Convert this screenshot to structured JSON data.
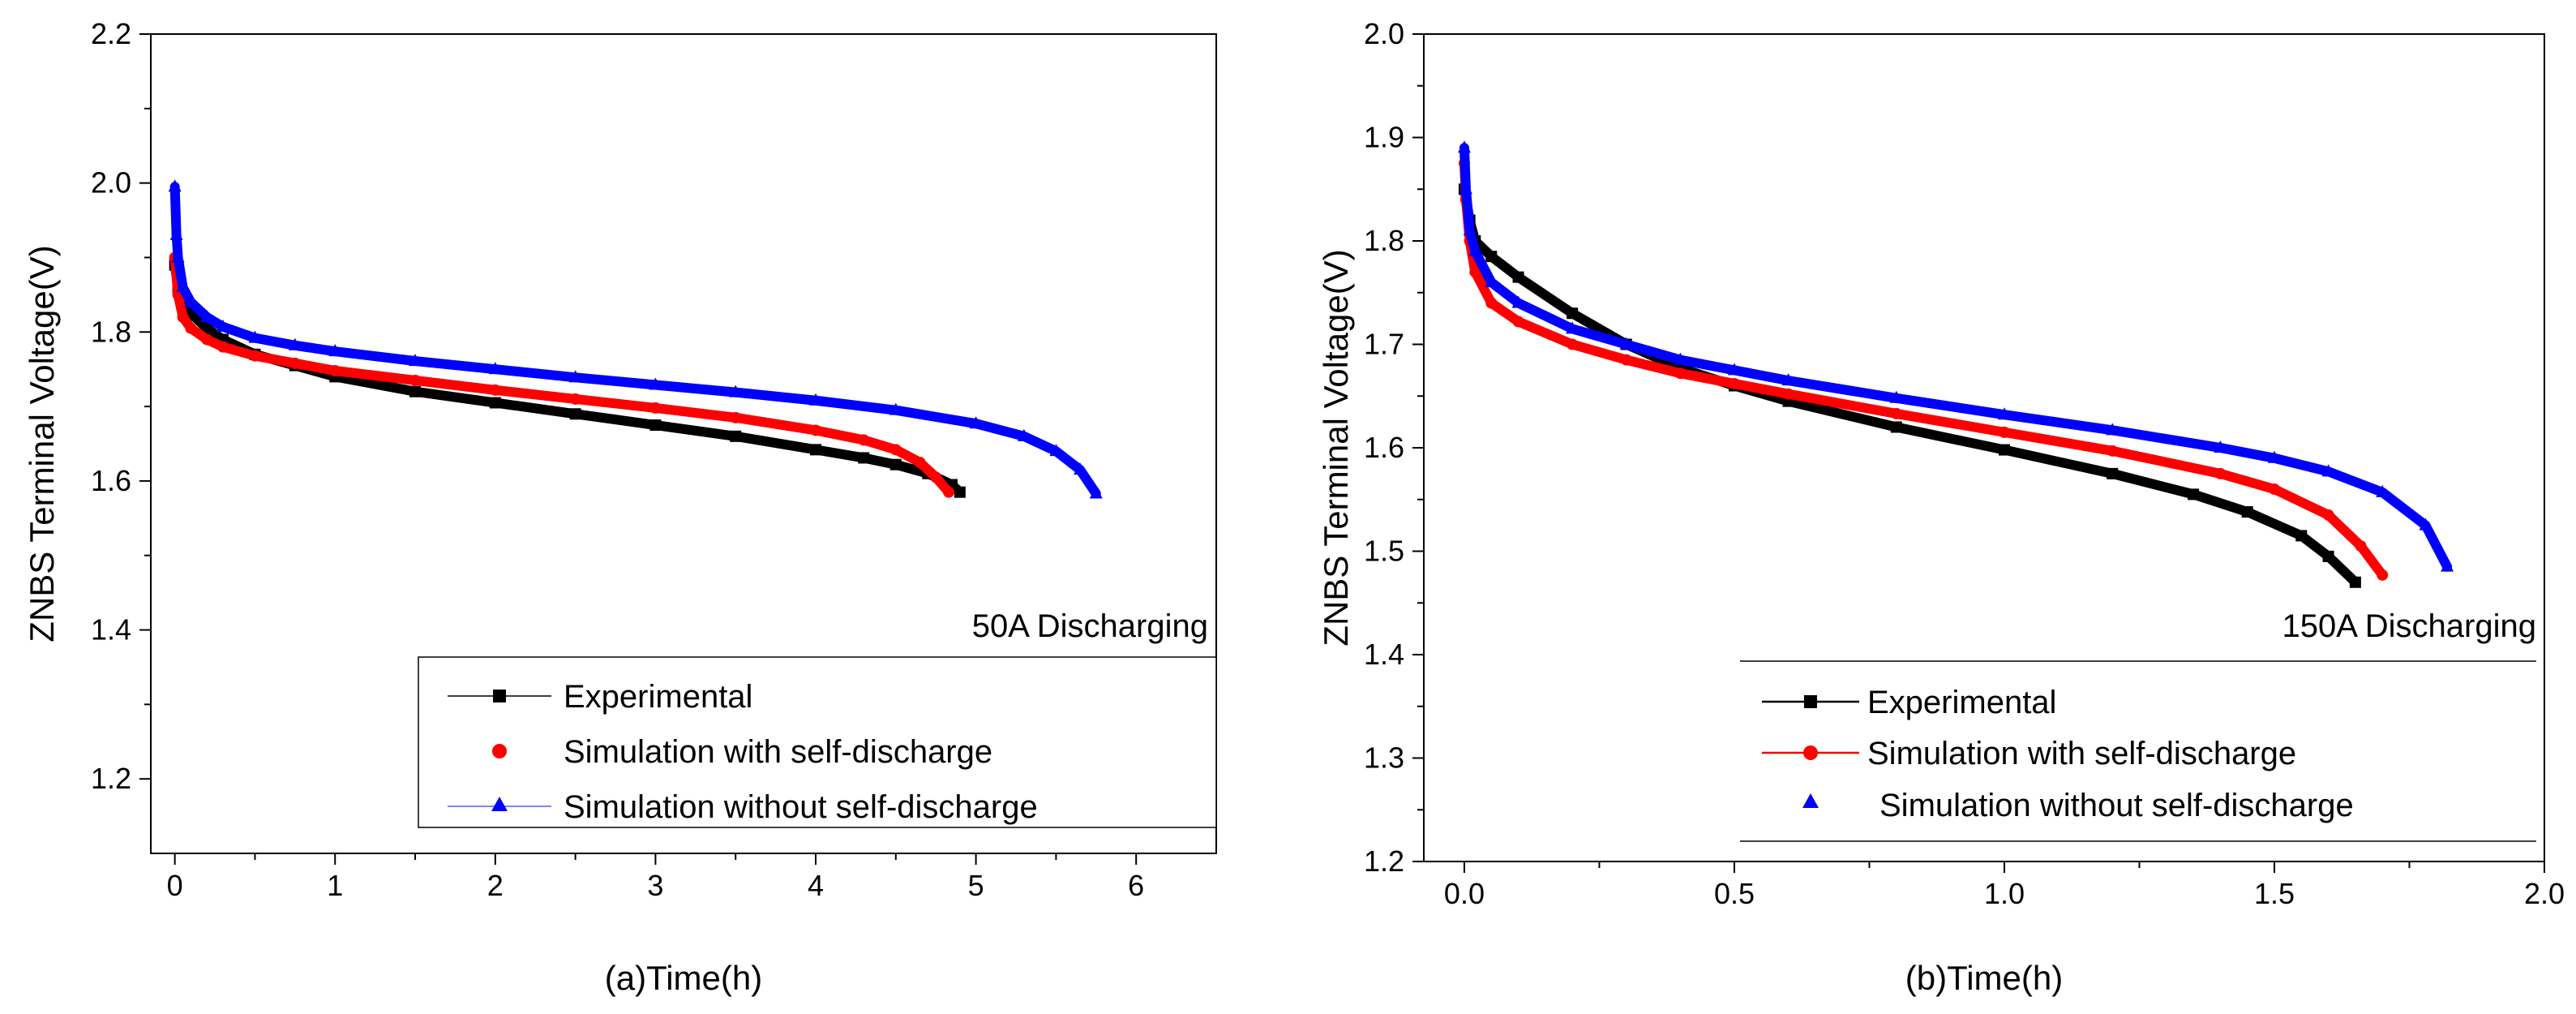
{
  "chart_data": [
    {
      "type": "line",
      "panel": "a",
      "xlabel": "(a)Time(h)",
      "ylabel": "ZNBS Terminal Voltage(V)",
      "xlim": [
        -0.15,
        6.5
      ],
      "ylim": [
        1.1,
        2.2
      ],
      "xticks": [
        0,
        1,
        2,
        3,
        4,
        5,
        6
      ],
      "xtick_labels": [
        "0",
        "1",
        "2",
        "3",
        "4",
        "5",
        "6"
      ],
      "yticks": [
        1.2,
        1.4,
        1.6,
        1.8,
        2.0,
        2.2
      ],
      "ytick_labels": [
        "1.2",
        "1.4",
        "1.6",
        "1.8",
        "2.0",
        "2.2"
      ],
      "annotation": "50A Discharging",
      "legend_position": "bottom-right",
      "series": [
        {
          "name": "Experimental",
          "color": "#000000",
          "marker": "square",
          "x": [
            0,
            0.02,
            0.05,
            0.1,
            0.2,
            0.3,
            0.5,
            0.75,
            1.0,
            1.5,
            2.0,
            2.5,
            3.0,
            3.5,
            4.0,
            4.3,
            4.5,
            4.7,
            4.85,
            4.9
          ],
          "y": [
            1.89,
            1.86,
            1.84,
            1.825,
            1.805,
            1.79,
            1.77,
            1.755,
            1.74,
            1.72,
            1.705,
            1.69,
            1.675,
            1.66,
            1.642,
            1.631,
            1.622,
            1.61,
            1.595,
            1.585
          ]
        },
        {
          "name": "Simulation with self-discharge",
          "color": "#ff0000",
          "marker": "circle",
          "x": [
            0,
            0.02,
            0.05,
            0.1,
            0.2,
            0.3,
            0.5,
            0.75,
            1.0,
            1.5,
            2.0,
            2.5,
            3.0,
            3.5,
            4.0,
            4.3,
            4.5,
            4.65,
            4.75,
            4.83
          ],
          "y": [
            1.9,
            1.85,
            1.82,
            1.805,
            1.79,
            1.78,
            1.768,
            1.758,
            1.748,
            1.735,
            1.722,
            1.71,
            1.698,
            1.685,
            1.668,
            1.655,
            1.642,
            1.625,
            1.605,
            1.585
          ]
        },
        {
          "name": "Simulation without self-discharge",
          "color": "#0000ff",
          "marker": "triangle",
          "x": [
            0,
            0.01,
            0.02,
            0.05,
            0.1,
            0.2,
            0.3,
            0.5,
            0.75,
            1.0,
            1.5,
            2.0,
            2.5,
            3.0,
            3.5,
            4.0,
            4.5,
            5.0,
            5.3,
            5.5,
            5.65,
            5.75
          ],
          "y": [
            1.995,
            1.93,
            1.9,
            1.86,
            1.84,
            1.82,
            1.807,
            1.792,
            1.782,
            1.774,
            1.761,
            1.75,
            1.739,
            1.729,
            1.719,
            1.708,
            1.695,
            1.677,
            1.66,
            1.64,
            1.615,
            1.583
          ]
        }
      ]
    },
    {
      "type": "line",
      "panel": "b",
      "xlabel": "(b)Time(h)",
      "ylabel": "ZNBS Terminal Voltage(V)",
      "xlim": [
        -0.075,
        2.0
      ],
      "ylim": [
        1.2,
        2.0
      ],
      "xticks": [
        0.0,
        0.5,
        1.0,
        1.5,
        2.0
      ],
      "xtick_labels": [
        "0.0",
        "0.5",
        "1.0",
        "1.5",
        "2.0"
      ],
      "yticks": [
        1.2,
        1.3,
        1.4,
        1.5,
        1.6,
        1.7,
        1.8,
        1.9,
        2.0
      ],
      "ytick_labels": [
        "1.2",
        "1.3",
        "1.4",
        "1.5",
        "1.6",
        "1.7",
        "1.8",
        "1.9",
        "2.0"
      ],
      "annotation": "150A Discharging",
      "legend_position": "bottom-right",
      "series": [
        {
          "name": "Experimental",
          "color": "#000000",
          "marker": "square",
          "x": [
            0,
            0.01,
            0.02,
            0.05,
            0.1,
            0.2,
            0.3,
            0.4,
            0.5,
            0.6,
            0.8,
            1.0,
            1.2,
            1.35,
            1.45,
            1.55,
            1.6,
            1.65
          ],
          "y": [
            1.85,
            1.82,
            1.8,
            1.785,
            1.765,
            1.73,
            1.7,
            1.677,
            1.66,
            1.645,
            1.62,
            1.598,
            1.575,
            1.555,
            1.538,
            1.515,
            1.495,
            1.47
          ]
        },
        {
          "name": "Simulation with self-discharge",
          "color": "#ff0000",
          "marker": "circle",
          "x": [
            0,
            0.003,
            0.01,
            0.02,
            0.05,
            0.1,
            0.2,
            0.3,
            0.4,
            0.5,
            0.6,
            0.8,
            1.0,
            1.2,
            1.4,
            1.5,
            1.6,
            1.66,
            1.7
          ],
          "y": [
            1.875,
            1.84,
            1.8,
            1.77,
            1.74,
            1.722,
            1.7,
            1.685,
            1.672,
            1.662,
            1.652,
            1.633,
            1.615,
            1.597,
            1.575,
            1.56,
            1.535,
            1.505,
            1.477
          ]
        },
        {
          "name": "Simulation without self-discharge",
          "color": "#0000ff",
          "marker": "triangle",
          "x": [
            0,
            0.003,
            0.01,
            0.02,
            0.05,
            0.1,
            0.2,
            0.3,
            0.4,
            0.5,
            0.6,
            0.8,
            1.0,
            1.2,
            1.4,
            1.5,
            1.6,
            1.7,
            1.78,
            1.82
          ],
          "y": [
            1.89,
            1.85,
            1.81,
            1.79,
            1.76,
            1.74,
            1.715,
            1.7,
            1.685,
            1.675,
            1.665,
            1.648,
            1.632,
            1.617,
            1.6,
            1.59,
            1.577,
            1.557,
            1.525,
            1.485
          ]
        }
      ]
    }
  ]
}
